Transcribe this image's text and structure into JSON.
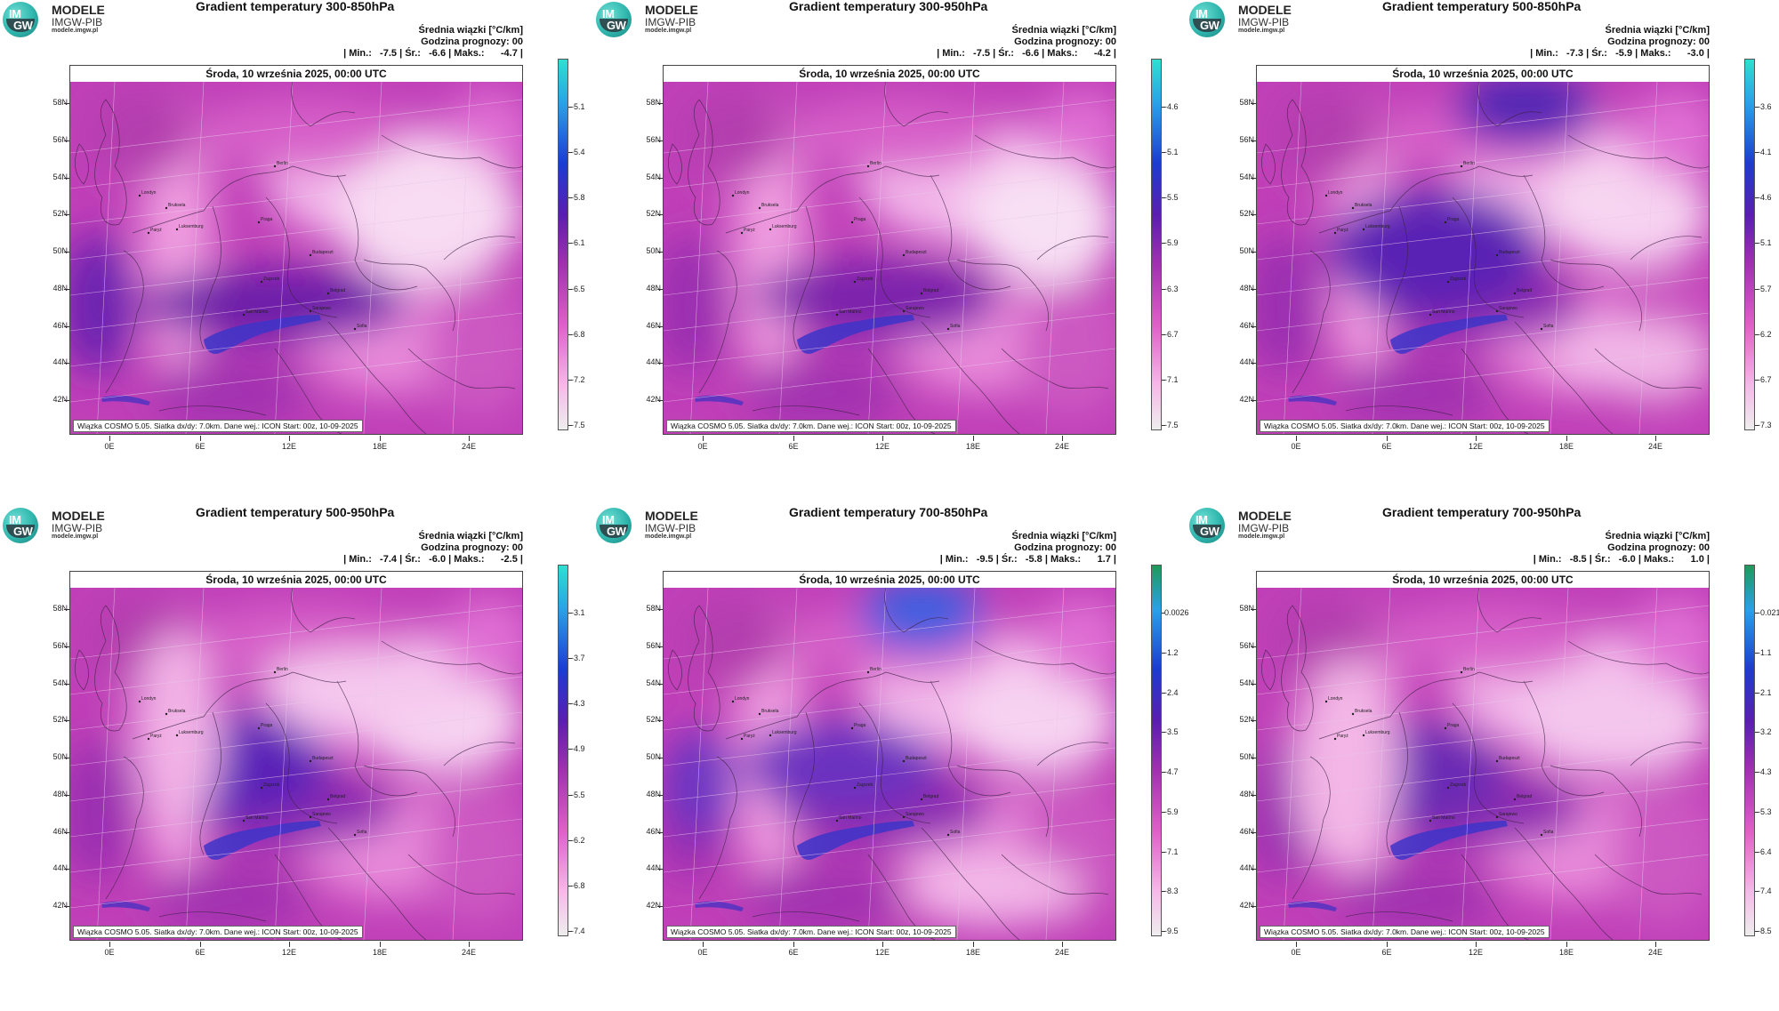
{
  "logo": {
    "title": "MODELE",
    "subtitle": "IMGW-PIB",
    "url": "modele.imgw.pl",
    "im": "IM",
    "gw": "GW"
  },
  "common": {
    "info_line1": "Średnia wiązki [°C/km]",
    "info_line2": "Godzina prognozy: 00",
    "date": "Środa, 10 września 2025, 00:00 UTC",
    "footer": "Wiązka COSMO 5.05. Siatka dx/dy: 7.0km. Dane wej.: ICON Start: 00z, 10-09-2025",
    "lat_labels": [
      "58N",
      "56N",
      "54N",
      "52N",
      "50N",
      "48N",
      "46N",
      "44N",
      "42N"
    ],
    "lon_labels": [
      "0E",
      "6E",
      "12E",
      "18E",
      "24E"
    ]
  },
  "panels": [
    {
      "title": "Gradient temperatury 300-850hPa",
      "min": "-7.5",
      "avg": "-6.6",
      "max": "-4.7",
      "cbar_labels": [
        "-5.1",
        "-5.4",
        "-5.8",
        "-6.1",
        "-6.5",
        "-6.8",
        "-7.2",
        "-7.5"
      ],
      "cbar_top": "#2de0d0",
      "scheme": "a"
    },
    {
      "title": "Gradient temperatury 300-950hPa",
      "min": "-7.5",
      "avg": "-6.6",
      "max": "-4.2",
      "cbar_labels": [
        "-4.6",
        "-5.1",
        "-5.5",
        "-5.9",
        "-6.3",
        "-6.7",
        "-7.1",
        "-7.5"
      ],
      "cbar_top": "#2de0d0",
      "scheme": "b"
    },
    {
      "title": "Gradient temperatury 500-850hPa",
      "min": "-7.3",
      "avg": "-5.9",
      "max": "-3.0",
      "cbar_labels": [
        "-3.6",
        "-4.1",
        "-4.6",
        "-5.1",
        "-5.7",
        "-6.2",
        "-6.7",
        "-7.3"
      ],
      "cbar_top": "#2de0d0",
      "scheme": "c"
    },
    {
      "title": "Gradient temperatury 500-950hPa",
      "min": "-7.4",
      "avg": "-6.0",
      "max": "-2.5",
      "cbar_labels": [
        "-3.1",
        "-3.7",
        "-4.3",
        "-4.9",
        "-5.5",
        "-6.2",
        "-6.8",
        "-7.4"
      ],
      "cbar_top": "#2de0d0",
      "scheme": "d"
    },
    {
      "title": "Gradient temperatury 700-850hPa",
      "min": "-9.5",
      "avg": "-5.8",
      "max": "1.7",
      "cbar_labels": [
        "0.0026",
        "-1.2",
        "-2.4",
        "-3.5",
        "-4.7",
        "-5.9",
        "-7.1",
        "-8.3",
        "-9.5"
      ],
      "cbar_top": "#1f9a5a",
      "scheme": "e"
    },
    {
      "title": "Gradient temperatury 700-950hPa",
      "min": "-8.5",
      "avg": "-6.0",
      "max": "1.0",
      "cbar_labels": [
        "-0.021",
        "-1.1",
        "-2.1",
        "-3.2",
        "-4.3",
        "-5.3",
        "-6.4",
        "-7.4",
        "-8.5"
      ],
      "cbar_top": "#1f9a5a",
      "scheme": "f"
    }
  ],
  "cities": [
    "Londyn",
    "Bruksela",
    "Paryż",
    "Luksemburg",
    "Praga",
    "Berlin",
    "Budapeszt",
    "Belgrad",
    "Sarajewo",
    "Zagrzeb",
    "San Marino",
    "Sofia"
  ],
  "labels": {
    "min": "Min.:",
    "avg": "Śr.:",
    "max": "Maks.:"
  }
}
